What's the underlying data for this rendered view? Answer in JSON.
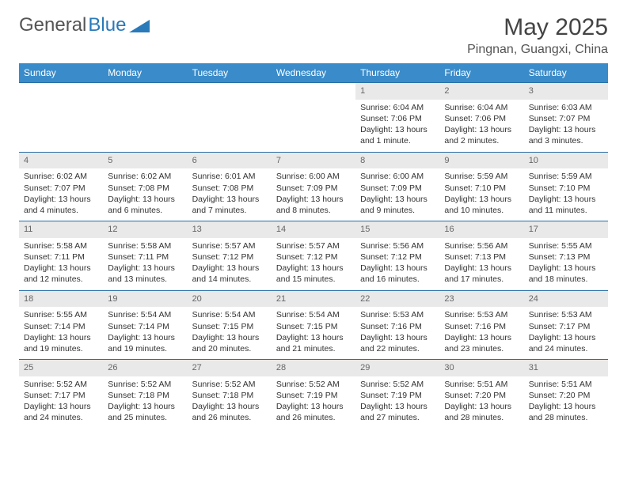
{
  "logo": {
    "text1": "General",
    "text2": "Blue"
  },
  "title": {
    "month": "May 2025",
    "location": "Pingnan, Guangxi, China"
  },
  "calendar": {
    "header_bg": "#3a8bc9",
    "header_fg": "#ffffff",
    "cell_border": "#2a6fa5",
    "daynum_bg": "#e9e9e9",
    "days_of_week": [
      "Sunday",
      "Monday",
      "Tuesday",
      "Wednesday",
      "Thursday",
      "Friday",
      "Saturday"
    ],
    "leading_blanks": 4,
    "days": [
      {
        "n": "1",
        "sunrise": "Sunrise: 6:04 AM",
        "sunset": "Sunset: 7:06 PM",
        "daylight": "Daylight: 13 hours and 1 minute."
      },
      {
        "n": "2",
        "sunrise": "Sunrise: 6:04 AM",
        "sunset": "Sunset: 7:06 PM",
        "daylight": "Daylight: 13 hours and 2 minutes."
      },
      {
        "n": "3",
        "sunrise": "Sunrise: 6:03 AM",
        "sunset": "Sunset: 7:07 PM",
        "daylight": "Daylight: 13 hours and 3 minutes."
      },
      {
        "n": "4",
        "sunrise": "Sunrise: 6:02 AM",
        "sunset": "Sunset: 7:07 PM",
        "daylight": "Daylight: 13 hours and 4 minutes."
      },
      {
        "n": "5",
        "sunrise": "Sunrise: 6:02 AM",
        "sunset": "Sunset: 7:08 PM",
        "daylight": "Daylight: 13 hours and 6 minutes."
      },
      {
        "n": "6",
        "sunrise": "Sunrise: 6:01 AM",
        "sunset": "Sunset: 7:08 PM",
        "daylight": "Daylight: 13 hours and 7 minutes."
      },
      {
        "n": "7",
        "sunrise": "Sunrise: 6:00 AM",
        "sunset": "Sunset: 7:09 PM",
        "daylight": "Daylight: 13 hours and 8 minutes."
      },
      {
        "n": "8",
        "sunrise": "Sunrise: 6:00 AM",
        "sunset": "Sunset: 7:09 PM",
        "daylight": "Daylight: 13 hours and 9 minutes."
      },
      {
        "n": "9",
        "sunrise": "Sunrise: 5:59 AM",
        "sunset": "Sunset: 7:10 PM",
        "daylight": "Daylight: 13 hours and 10 minutes."
      },
      {
        "n": "10",
        "sunrise": "Sunrise: 5:59 AM",
        "sunset": "Sunset: 7:10 PM",
        "daylight": "Daylight: 13 hours and 11 minutes."
      },
      {
        "n": "11",
        "sunrise": "Sunrise: 5:58 AM",
        "sunset": "Sunset: 7:11 PM",
        "daylight": "Daylight: 13 hours and 12 minutes."
      },
      {
        "n": "12",
        "sunrise": "Sunrise: 5:58 AM",
        "sunset": "Sunset: 7:11 PM",
        "daylight": "Daylight: 13 hours and 13 minutes."
      },
      {
        "n": "13",
        "sunrise": "Sunrise: 5:57 AM",
        "sunset": "Sunset: 7:12 PM",
        "daylight": "Daylight: 13 hours and 14 minutes."
      },
      {
        "n": "14",
        "sunrise": "Sunrise: 5:57 AM",
        "sunset": "Sunset: 7:12 PM",
        "daylight": "Daylight: 13 hours and 15 minutes."
      },
      {
        "n": "15",
        "sunrise": "Sunrise: 5:56 AM",
        "sunset": "Sunset: 7:12 PM",
        "daylight": "Daylight: 13 hours and 16 minutes."
      },
      {
        "n": "16",
        "sunrise": "Sunrise: 5:56 AM",
        "sunset": "Sunset: 7:13 PM",
        "daylight": "Daylight: 13 hours and 17 minutes."
      },
      {
        "n": "17",
        "sunrise": "Sunrise: 5:55 AM",
        "sunset": "Sunset: 7:13 PM",
        "daylight": "Daylight: 13 hours and 18 minutes."
      },
      {
        "n": "18",
        "sunrise": "Sunrise: 5:55 AM",
        "sunset": "Sunset: 7:14 PM",
        "daylight": "Daylight: 13 hours and 19 minutes."
      },
      {
        "n": "19",
        "sunrise": "Sunrise: 5:54 AM",
        "sunset": "Sunset: 7:14 PM",
        "daylight": "Daylight: 13 hours and 19 minutes."
      },
      {
        "n": "20",
        "sunrise": "Sunrise: 5:54 AM",
        "sunset": "Sunset: 7:15 PM",
        "daylight": "Daylight: 13 hours and 20 minutes."
      },
      {
        "n": "21",
        "sunrise": "Sunrise: 5:54 AM",
        "sunset": "Sunset: 7:15 PM",
        "daylight": "Daylight: 13 hours and 21 minutes."
      },
      {
        "n": "22",
        "sunrise": "Sunrise: 5:53 AM",
        "sunset": "Sunset: 7:16 PM",
        "daylight": "Daylight: 13 hours and 22 minutes."
      },
      {
        "n": "23",
        "sunrise": "Sunrise: 5:53 AM",
        "sunset": "Sunset: 7:16 PM",
        "daylight": "Daylight: 13 hours and 23 minutes."
      },
      {
        "n": "24",
        "sunrise": "Sunrise: 5:53 AM",
        "sunset": "Sunset: 7:17 PM",
        "daylight": "Daylight: 13 hours and 24 minutes."
      },
      {
        "n": "25",
        "sunrise": "Sunrise: 5:52 AM",
        "sunset": "Sunset: 7:17 PM",
        "daylight": "Daylight: 13 hours and 24 minutes."
      },
      {
        "n": "26",
        "sunrise": "Sunrise: 5:52 AM",
        "sunset": "Sunset: 7:18 PM",
        "daylight": "Daylight: 13 hours and 25 minutes."
      },
      {
        "n": "27",
        "sunrise": "Sunrise: 5:52 AM",
        "sunset": "Sunset: 7:18 PM",
        "daylight": "Daylight: 13 hours and 26 minutes."
      },
      {
        "n": "28",
        "sunrise": "Sunrise: 5:52 AM",
        "sunset": "Sunset: 7:19 PM",
        "daylight": "Daylight: 13 hours and 26 minutes."
      },
      {
        "n": "29",
        "sunrise": "Sunrise: 5:52 AM",
        "sunset": "Sunset: 7:19 PM",
        "daylight": "Daylight: 13 hours and 27 minutes."
      },
      {
        "n": "30",
        "sunrise": "Sunrise: 5:51 AM",
        "sunset": "Sunset: 7:20 PM",
        "daylight": "Daylight: 13 hours and 28 minutes."
      },
      {
        "n": "31",
        "sunrise": "Sunrise: 5:51 AM",
        "sunset": "Sunset: 7:20 PM",
        "daylight": "Daylight: 13 hours and 28 minutes."
      }
    ]
  }
}
